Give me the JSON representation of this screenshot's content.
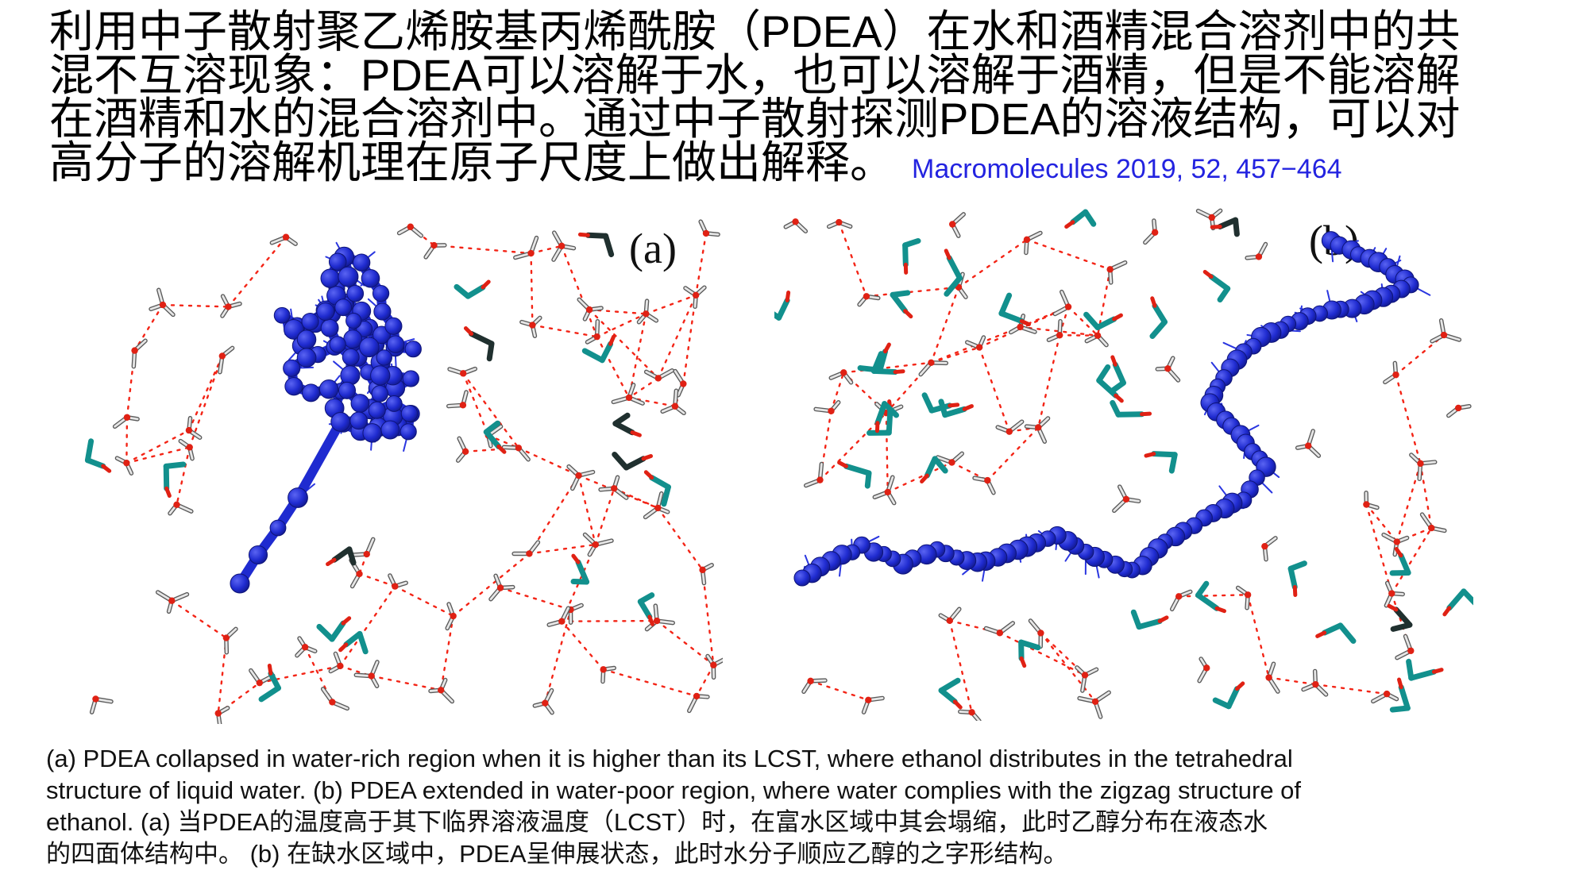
{
  "header": {
    "lines": [
      "利用中子散射聚乙烯胺基丙烯酰胺（PDEA）在水和酒精混合溶剂中的共",
      "混不互溶现象：PDEA可以溶解于水，也可以溶解于酒精，但是不能溶解",
      "在酒精和水的混合溶剂中。通过中子散射探测PDEA的溶液结构，可以对",
      "高分子的溶解机理在原子尺度上做出解释。"
    ],
    "citation": "Macromolecules 2019, 52, 457−464",
    "citation_color": "#2323e0"
  },
  "figure": {
    "panel_a_label": "(a)",
    "panel_b_label": "(b)",
    "colors": {
      "polymer_blue": "#1f2bd0",
      "polymer_mid": "#2a36e0",
      "polymer_dark": "#0e1478",
      "hbond_red": "#f32416",
      "oxygen_red": "#e02114",
      "hydrogen_light": "#e6e6e6",
      "hydrogen_edge": "#5a5a5a",
      "ethanol_teal": "#12908d",
      "stick_dark": "#20302f"
    }
  },
  "caption": {
    "lines": [
      "(a) PDEA collapsed in water-rich region when it is higher than its LCST, where ethanol distributes in the tetrahedral",
      "structure of liquid water. (b) PDEA extended in water-poor region, where water complies with the zigzag structure of",
      "ethanol. (a) 当PDEA的温度高于其下临界溶液温度（LCST）时，在富水区域中其会塌缩，此时乙醇分布在液态水",
      "的四面体结构中。 (b) 在缺水区域中，PDEA呈伸展状态，此时水分子顺应乙醇的之字形结构。"
    ]
  }
}
